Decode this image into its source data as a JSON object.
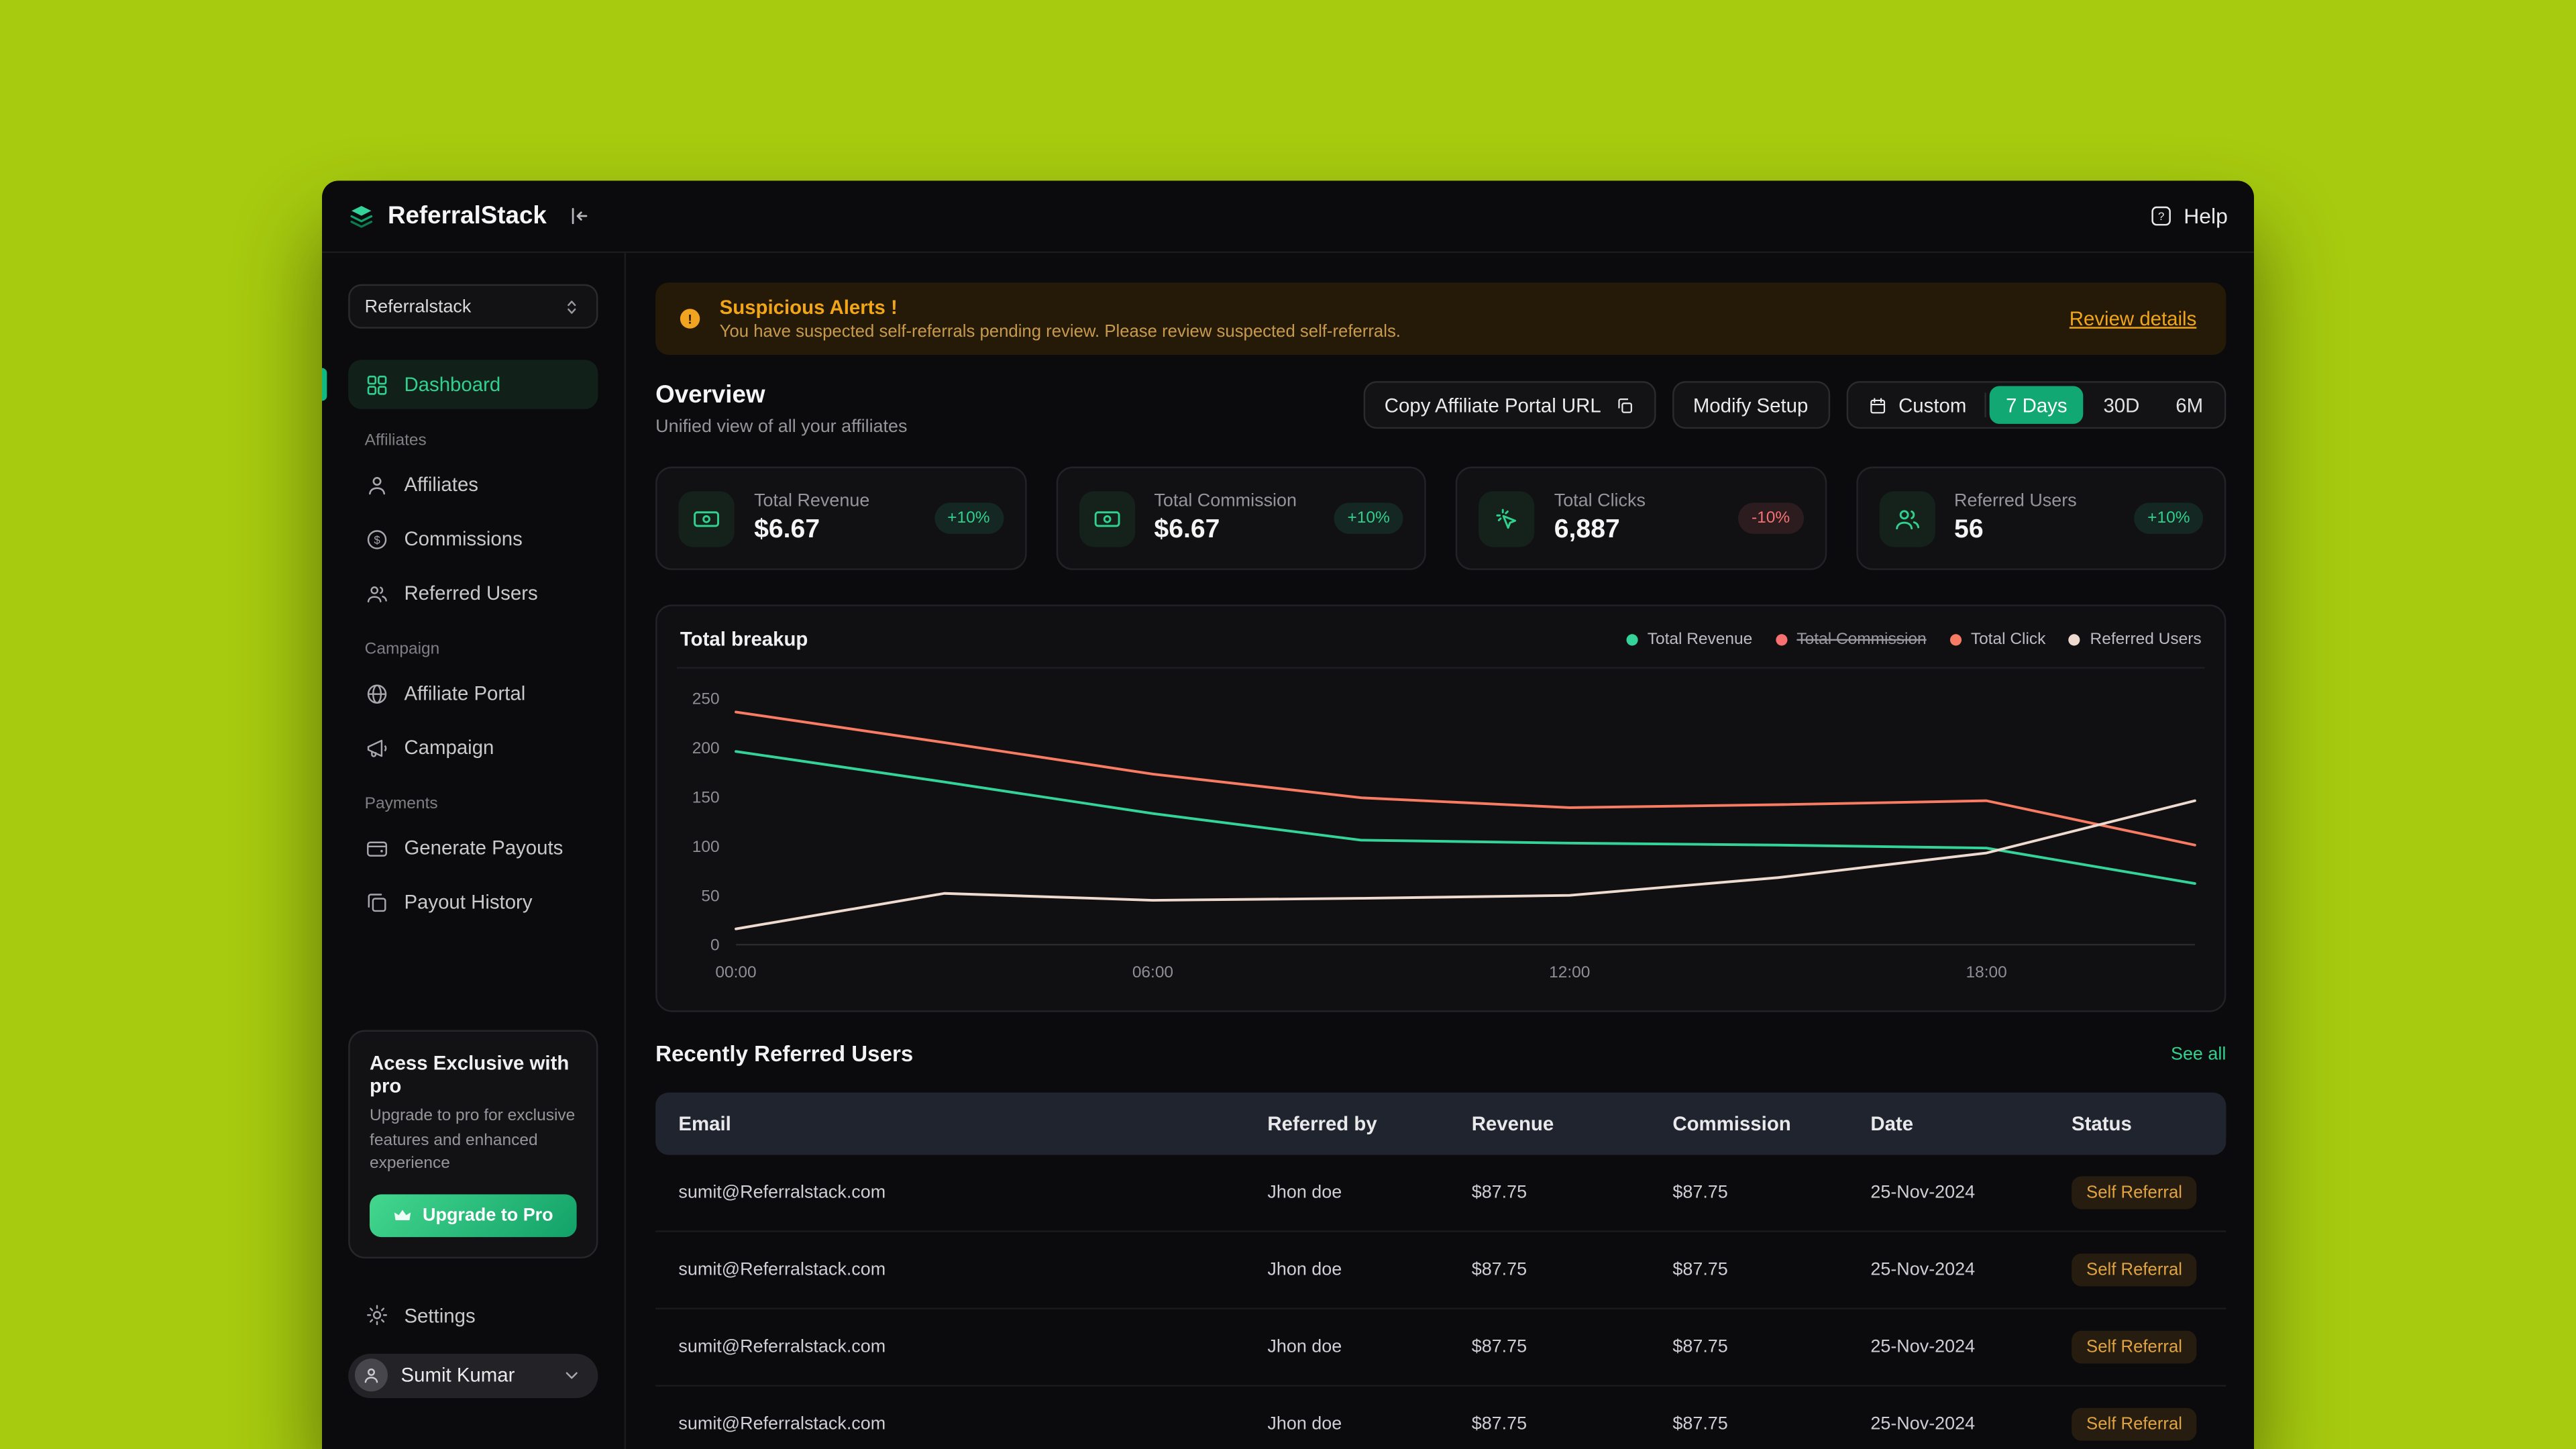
{
  "topbar": {
    "brand": "ReferralStack",
    "help": "Help"
  },
  "sidebar": {
    "workspace": "Referralstack",
    "dashboard": "Dashboard",
    "sections": [
      {
        "label": "Affiliates",
        "items": [
          "Affiliates",
          "Commissions",
          "Referred Users"
        ]
      },
      {
        "label": "Campaign",
        "items": [
          "Affiliate Portal",
          "Campaign"
        ]
      },
      {
        "label": "Payments",
        "items": [
          "Generate Payouts",
          "Payout History"
        ]
      }
    ],
    "promo": {
      "title": "Acess Exclusive with pro",
      "body": "Upgrade to pro for exclusive features and enhanced experience",
      "cta": "Upgrade to Pro"
    },
    "settings": "Settings",
    "user_name": "Sumit Kumar"
  },
  "alert": {
    "title": "Suspicious Alerts !",
    "message": "You have suspected self-referrals pending review. Please review suspected self-referrals.",
    "link": "Review details"
  },
  "overview": {
    "title": "Overview",
    "subtitle": "Unified view of all your affiliates",
    "copy_url_button": "Copy Affiliate Portal URL",
    "modify_setup_button": "Modify Setup",
    "range_custom": "Custom",
    "range_options": [
      "7 Days",
      "30D",
      "6M"
    ],
    "range_active": "7 Days"
  },
  "stats": [
    {
      "label": "Total Revenue",
      "value": "$6.67",
      "delta": "+10%",
      "trend": "up"
    },
    {
      "label": "Total Commission",
      "value": "$6.67",
      "delta": "+10%",
      "trend": "up"
    },
    {
      "label": "Total Clicks",
      "value": "6,887",
      "delta": "-10%",
      "trend": "down"
    },
    {
      "label": "Referred Users",
      "value": "56",
      "delta": "+10%",
      "trend": "up"
    }
  ],
  "chart_data": {
    "type": "line",
    "title": "Total breakup",
    "x": [
      "00:00",
      "03:00",
      "06:00",
      "09:00",
      "12:00",
      "15:00",
      "18:00",
      "21:00"
    ],
    "x_axis_labels": [
      "00:00",
      "06:00",
      "12:00",
      "18:00"
    ],
    "y_ticks": [
      0,
      50,
      100,
      150,
      200,
      250
    ],
    "ylim": [
      0,
      250
    ],
    "grid": false,
    "legend_position": "top-right",
    "series": [
      {
        "name": "Total Revenue",
        "color": "#34d399",
        "visible": true,
        "values": [
          196,
          165,
          133,
          106,
          103,
          101,
          98,
          62
        ]
      },
      {
        "name": "Total Commission",
        "color": "#f87171",
        "visible": false,
        "values": []
      },
      {
        "name": "Total Click",
        "color": "#f87b63",
        "visible": true,
        "values": [
          236,
          205,
          173,
          149,
          139,
          142,
          146,
          101
        ]
      },
      {
        "name": "Referred Users",
        "color": "#eedacf",
        "visible": true,
        "values": [
          16,
          52,
          45,
          47,
          50,
          68,
          93,
          146
        ]
      }
    ]
  },
  "referred": {
    "title": "Recently Referred Users",
    "see_all": "See all",
    "columns": [
      "Email",
      "Referred by",
      "Revenue",
      "Commission",
      "Date",
      "Status"
    ],
    "rows": [
      {
        "email": "sumit@Referralstack.com",
        "referred_by": "Jhon doe",
        "revenue": "$87.75",
        "commission": "$87.75",
        "date": "25-Nov-2024",
        "status": "Self Referral"
      },
      {
        "email": "sumit@Referralstack.com",
        "referred_by": "Jhon doe",
        "revenue": "$87.75",
        "commission": "$87.75",
        "date": "25-Nov-2024",
        "status": "Self Referral"
      },
      {
        "email": "sumit@Referralstack.com",
        "referred_by": "Jhon doe",
        "revenue": "$87.75",
        "commission": "$87.75",
        "date": "25-Nov-2024",
        "status": "Self Referral"
      },
      {
        "email": "sumit@Referralstack.com",
        "referred_by": "Jhon doe",
        "revenue": "$87.75",
        "commission": "$87.75",
        "date": "25-Nov-2024",
        "status": "Self Referral"
      }
    ]
  }
}
